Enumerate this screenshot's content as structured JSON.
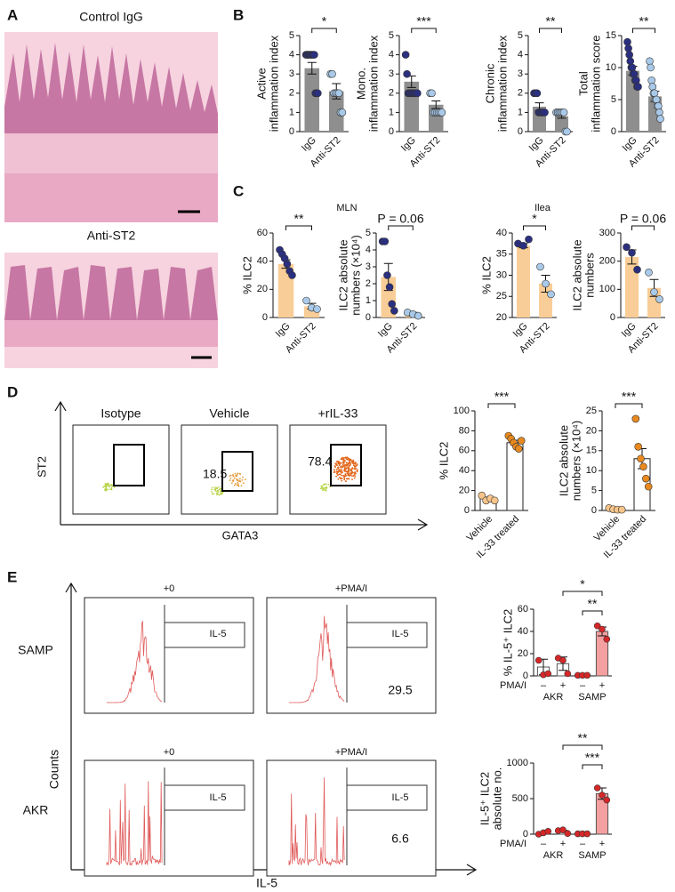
{
  "panels": {
    "A": {
      "label": "A",
      "captions": [
        "Control IgG",
        "Anti-ST2"
      ]
    },
    "B": {
      "label": "B"
    },
    "C": {
      "label": "C"
    },
    "D": {
      "label": "D",
      "plots": [
        "Isotype",
        "Vehicle",
        "+rIL-33"
      ],
      "gates": [
        18.5,
        78.4
      ],
      "y_axis": "ST2",
      "x_axis": "GATA3"
    },
    "E": {
      "label": "E",
      "columns": [
        "+0",
        "+PMA/I"
      ],
      "rows": [
        "SAMP",
        "AKR"
      ],
      "gate_label": "IL-5",
      "gate_values": [
        29.5,
        6.6
      ],
      "y_axis": "Counts",
      "x_axis": "IL-5"
    }
  },
  "chart_data": [
    {
      "type": "bar",
      "ylabel": [
        "Active",
        "inflammation index"
      ],
      "categories": [
        "IgG",
        "Anti-ST2"
      ],
      "values": [
        3.3,
        2.1
      ],
      "errors": [
        0.3,
        0.4
      ],
      "points": [
        [
          4,
          4,
          4,
          4,
          4,
          4,
          4,
          4,
          2,
          2,
          2
        ],
        [
          3,
          3,
          2,
          2,
          2,
          2,
          1,
          1
        ]
      ],
      "bar_colors": [
        "#8e8e8e",
        "#8e8e8e"
      ],
      "point_colors": [
        "#2b2f7f",
        "#a9c9e9"
      ],
      "ylim": [
        0,
        5
      ],
      "yticks": [
        0,
        1,
        2,
        3,
        4,
        5
      ],
      "annotations": [
        "*"
      ]
    },
    {
      "type": "bar",
      "ylabel": [
        "Mono.",
        "inflammation index"
      ],
      "categories": [
        "IgG",
        "Anti-ST2"
      ],
      "values": [
        2.6,
        1.4
      ],
      "errors": [
        0.3,
        0.2
      ],
      "points": [
        [
          4,
          3,
          2,
          2,
          2,
          2,
          2,
          2,
          2,
          2
        ],
        [
          2,
          2,
          1,
          1,
          1,
          1,
          1,
          1
        ]
      ],
      "bar_colors": [
        "#8e8e8e",
        "#8e8e8e"
      ],
      "point_colors": [
        "#2b2f7f",
        "#a9c9e9"
      ],
      "ylim": [
        0,
        5
      ],
      "yticks": [
        0,
        1,
        2,
        3,
        4,
        5
      ],
      "annotations": [
        "***"
      ]
    },
    {
      "type": "bar",
      "ylabel": [
        "Chronic",
        "inflammation index"
      ],
      "categories": [
        "IgG",
        "Anti-ST2"
      ],
      "values": [
        1.3,
        0.8
      ],
      "errors": [
        0.2,
        0.1
      ],
      "points": [
        [
          2,
          2,
          2,
          1,
          1,
          1,
          1,
          1
        ],
        [
          1,
          1,
          1,
          1,
          1,
          1,
          0,
          0
        ]
      ],
      "bar_colors": [
        "#8e8e8e",
        "#8e8e8e"
      ],
      "point_colors": [
        "#2b2f7f",
        "#a9c9e9"
      ],
      "ylim": [
        0,
        5
      ],
      "yticks": [
        0,
        1,
        2,
        3,
        4,
        5
      ],
      "annotations": [
        "**"
      ]
    },
    {
      "type": "bar",
      "ylabel": [
        "Total",
        "inflammation score"
      ],
      "categories": [
        "IgG",
        "Anti-ST2"
      ],
      "values": [
        9.5,
        5.5
      ],
      "errors": [
        0.7,
        0.8
      ],
      "points": [
        [
          14,
          13,
          12,
          11,
          10,
          10,
          9,
          9,
          8,
          8,
          7,
          7
        ],
        [
          11,
          10,
          8,
          7,
          6,
          6,
          5,
          5,
          4,
          4,
          3,
          2
        ]
      ],
      "bar_colors": [
        "#8e8e8e",
        "#8e8e8e"
      ],
      "point_colors": [
        "#2b2f7f",
        "#a9c9e9"
      ],
      "ylim": [
        0,
        15
      ],
      "yticks": [
        0,
        5,
        10,
        15
      ],
      "annotations": [
        "**"
      ]
    },
    {
      "type": "bar",
      "title": "MLN",
      "ylabel": [
        "% ILC2"
      ],
      "categories": [
        "IgG",
        "Anti-ST2"
      ],
      "values": [
        38,
        8
      ],
      "errors": [
        3,
        2
      ],
      "points": [
        [
          48,
          45,
          42,
          38,
          33,
          30
        ],
        [
          12,
          7,
          6
        ]
      ],
      "bar_colors": [
        "#f9cd97",
        "#f9cd97"
      ],
      "point_colors": [
        "#2b2f7f",
        "#a9c9e9"
      ],
      "ylim": [
        0,
        60
      ],
      "yticks": [
        0,
        20,
        40,
        60
      ],
      "annotations": [
        "**"
      ]
    },
    {
      "type": "bar",
      "ylabel": [
        "ILC2 absolute",
        "numbers (×10⁴)"
      ],
      "categories": [
        "IgG",
        "Anti-ST2"
      ],
      "values": [
        2.4,
        0.2
      ],
      "errors": [
        0.8,
        0.1
      ],
      "points": [
        [
          4.5,
          4.5,
          2.5,
          1.8,
          0.8,
          0.4
        ],
        [
          0.3,
          0.2,
          0.1
        ]
      ],
      "bar_colors": [
        "#f9cd97",
        "#f9cd97"
      ],
      "point_colors": [
        "#2b2f7f",
        "#a9c9e9"
      ],
      "ylim": [
        0,
        5
      ],
      "yticks": [
        0,
        1,
        2,
        3,
        4,
        5
      ],
      "annotations": [
        "P = 0.06"
      ]
    },
    {
      "type": "bar",
      "title": "Ilea",
      "ylabel": [
        "% ILC2"
      ],
      "categories": [
        "IgG",
        "Anti-ST2"
      ],
      "values": [
        37,
        28
      ],
      "errors": [
        0.5,
        2
      ],
      "points": [
        [
          37.5,
          37,
          38.5
        ],
        [
          32,
          28,
          25.5
        ]
      ],
      "bar_colors": [
        "#f9cd97",
        "#f9cd97"
      ],
      "point_colors": [
        "#2b2f7f",
        "#a9c9e9"
      ],
      "ylim": [
        20,
        40
      ],
      "yticks": [
        20,
        25,
        30,
        35,
        40
      ],
      "annotations": [
        "*"
      ]
    },
    {
      "type": "bar",
      "ylabel": [
        "ILC2 absolute",
        "numbers"
      ],
      "categories": [
        "IgG",
        "Anti-ST2"
      ],
      "values": [
        215,
        105
      ],
      "errors": [
        25,
        30
      ],
      "points": [
        [
          250,
          230,
          170
        ],
        [
          160,
          90,
          65
        ]
      ],
      "bar_colors": [
        "#f9cd97",
        "#f9cd97"
      ],
      "point_colors": [
        "#2b2f7f",
        "#a9c9e9"
      ],
      "ylim": [
        0,
        300
      ],
      "yticks": [
        0,
        100,
        200,
        300
      ],
      "annotations": [
        "P = 0.06"
      ]
    },
    {
      "type": "bar",
      "ylabel": [
        "% ILC2"
      ],
      "categories": [
        "Vehicle",
        "IL-33 treated"
      ],
      "values": [
        12,
        68
      ],
      "errors": [
        1.5,
        2.5
      ],
      "points": [
        [
          15,
          10,
          12,
          10
        ],
        [
          75,
          72,
          68,
          64,
          62,
          70
        ]
      ],
      "bar_colors": [
        "#ffffff",
        "#ffffff"
      ],
      "bar_edge": "#222222",
      "point_colors": [
        "#f7c58a",
        "#e8891f"
      ],
      "ylim": [
        0,
        100
      ],
      "yticks": [
        0,
        20,
        40,
        60,
        80,
        100
      ],
      "annotations": [
        "***"
      ]
    },
    {
      "type": "bar",
      "ylabel": [
        "ILC2 absolute",
        "numbers (×10⁴)"
      ],
      "categories": [
        "Vehicle",
        "IL-33 treated"
      ],
      "values": [
        0.3,
        13
      ],
      "errors": [
        0.1,
        2.5
      ],
      "points": [
        [
          0.6,
          0.3,
          0.2,
          0.2
        ],
        [
          23,
          16,
          13,
          11,
          8,
          6
        ]
      ],
      "bar_colors": [
        "#ffffff",
        "#ffffff"
      ],
      "bar_edge": "#222222",
      "point_colors": [
        "#f7c58a",
        "#e8891f"
      ],
      "ylim": [
        0,
        25
      ],
      "yticks": [
        0,
        5,
        10,
        15,
        20,
        25
      ],
      "annotations": [
        "***"
      ]
    },
    {
      "type": "bar",
      "ylabel": [
        "% IL-5⁺ ILC2"
      ],
      "categories": [
        "–",
        "+",
        "–",
        "+"
      ],
      "groups": [
        "AKR",
        "SAMP"
      ],
      "group_label": "PMA/I",
      "values": [
        8,
        11,
        0.5,
        40
      ],
      "errors": [
        7,
        6,
        0.3,
        4
      ],
      "points": [
        [
          14,
          1,
          2
        ],
        [
          16,
          14,
          2
        ],
        [
          0.5,
          0.5,
          0.5
        ],
        [
          45,
          42,
          33
        ]
      ],
      "bar_colors": [
        "#ffffff",
        "#ffffff",
        "#f4a0a0",
        "#f4a0a0"
      ],
      "bar_edge": "#555555",
      "point_colors": [
        "#d62728",
        "#d62728",
        "#d62728",
        "#d62728"
      ],
      "ylim": [
        0,
        60
      ],
      "yticks": [
        0,
        20,
        40,
        60
      ],
      "annotations": [
        "*",
        "**"
      ]
    },
    {
      "type": "bar",
      "ylabel": [
        "IL-5⁺ ILC2",
        "absolute no."
      ],
      "categories": [
        "–",
        "+",
        "–",
        "+"
      ],
      "groups": [
        "AKR",
        "SAMP"
      ],
      "group_label": "PMA/I",
      "values": [
        20,
        40,
        5,
        570
      ],
      "errors": [
        12,
        15,
        2,
        80
      ],
      "points": [
        [
          0,
          20,
          40
        ],
        [
          50,
          60,
          10
        ],
        [
          5,
          5,
          5
        ],
        [
          650,
          550,
          480
        ]
      ],
      "bar_colors": [
        "#ffffff",
        "#ffffff",
        "#f4a0a0",
        "#f4a0a0"
      ],
      "bar_edge": "#555555",
      "point_colors": [
        "#d62728",
        "#d62728",
        "#d62728",
        "#d62728"
      ],
      "ylim": [
        0,
        1000
      ],
      "yticks": [
        0,
        500,
        1000
      ],
      "annotations": [
        "**",
        "***"
      ]
    }
  ]
}
